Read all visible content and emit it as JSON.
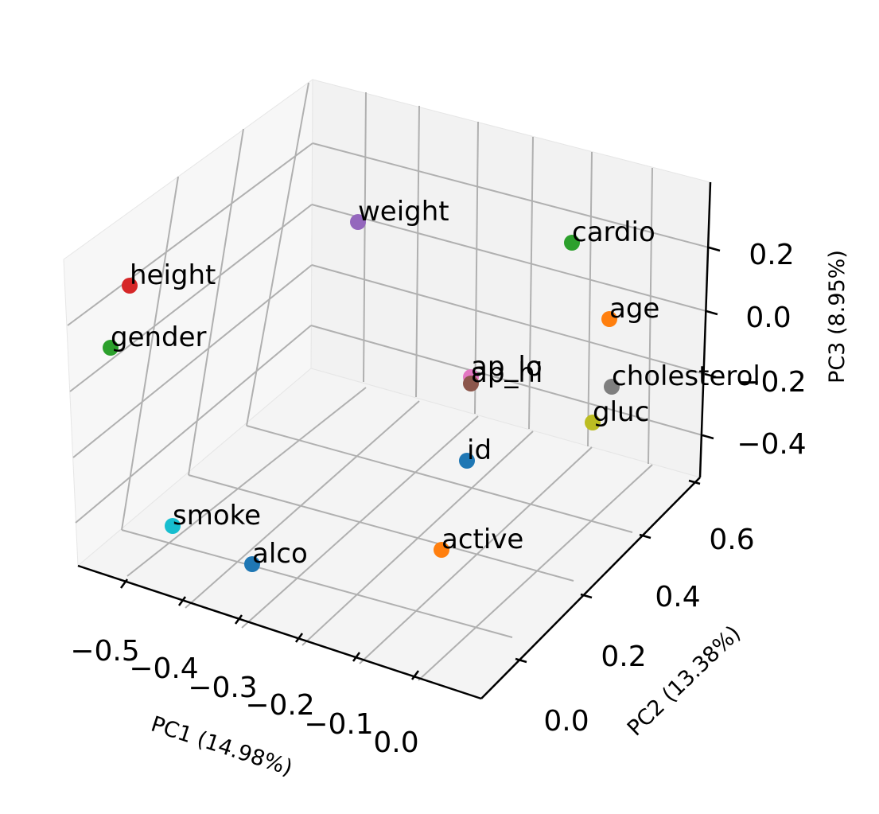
{
  "chart_data": {
    "type": "scatter",
    "projection": "3d",
    "title": "",
    "xlabel": "PC1 (14.98%)",
    "ylabel": "PC2 (13.38%)",
    "zlabel": "PC3 (8.95%)",
    "x_ticks": [
      "−0.5",
      "−0.4",
      "−0.3",
      "−0.2",
      "−0.1",
      "0.0"
    ],
    "y_ticks": [
      "0.0",
      "0.2",
      "0.4",
      "0.6"
    ],
    "z_ticks": [
      "−0.4",
      "−0.2",
      "0.0",
      "0.2"
    ],
    "grid": true,
    "points": [
      {
        "label": "weight",
        "color": "#9467bd"
      },
      {
        "label": "cardio",
        "color": "#2ca02c"
      },
      {
        "label": "height",
        "color": "#d62728"
      },
      {
        "label": "age",
        "color": "#ff7f0e"
      },
      {
        "label": "gender",
        "color": "#2ca02c"
      },
      {
        "label": "ap_lo",
        "color": "#e377c2"
      },
      {
        "label": "ap_hi",
        "color": "#8c564b"
      },
      {
        "label": "cholesterol",
        "color": "#7f7f7f"
      },
      {
        "label": "gluc",
        "color": "#bcbd22"
      },
      {
        "label": "id",
        "color": "#1f77b4"
      },
      {
        "label": "smoke",
        "color": "#17becf"
      },
      {
        "label": "active",
        "color": "#ff7f0e"
      },
      {
        "label": "alco",
        "color": "#1f77b4"
      }
    ]
  }
}
